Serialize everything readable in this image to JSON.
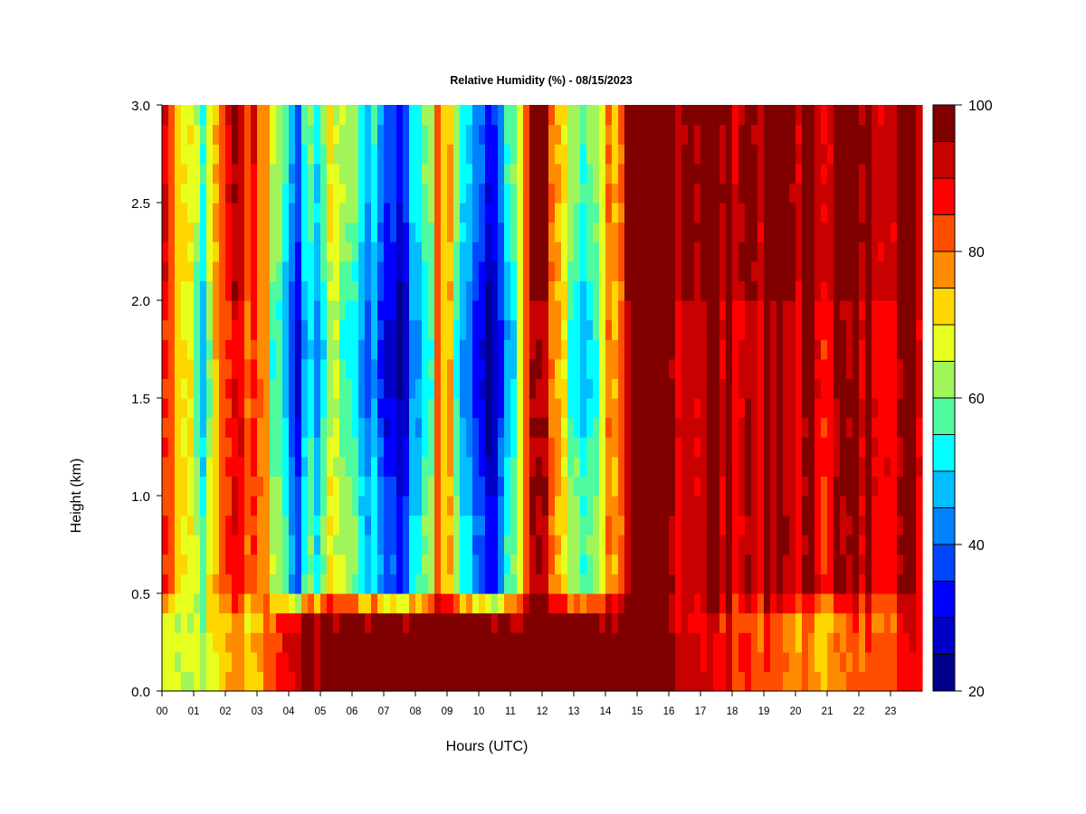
{
  "chart_data": {
    "type": "heatmap",
    "title": "Relative Humidity (%) - 08/15/2023",
    "xlabel": "Hours (UTC)",
    "ylabel": "Height (km)",
    "xlim": [
      0,
      24
    ],
    "ylim": [
      0.0,
      3.0
    ],
    "x_ticks": [
      "00",
      "01",
      "02",
      "03",
      "04",
      "05",
      "06",
      "07",
      "08",
      "09",
      "10",
      "11",
      "12",
      "13",
      "14",
      "15",
      "16",
      "17",
      "18",
      "19",
      "20",
      "21",
      "22",
      "23"
    ],
    "y_ticks": [
      "0.0",
      "0.5",
      "1.0",
      "1.5",
      "2.0",
      "2.5",
      "3.0"
    ],
    "colorbar": {
      "min": 20,
      "max": 100,
      "step": 5,
      "tick_labels": [
        "20",
        "40",
        "60",
        "80",
        "100"
      ],
      "levels_colors": [
        "#00008b",
        "#0000c8",
        "#0000ff",
        "#0046ff",
        "#0082ff",
        "#00beff",
        "#00ffff",
        "#50fa9e",
        "#a0f55a",
        "#e6ff1e",
        "#ffd700",
        "#ff8c00",
        "#ff4e00",
        "#ff0000",
        "#c80000",
        "#800000"
      ]
    },
    "field_description_points": [
      {
        "hour": 0.0,
        "rh_low": 70,
        "rh_high": 88
      },
      {
        "hour": 1.4,
        "rh_low": 65,
        "rh_high": 60
      },
      {
        "hour": 2.0,
        "rh_low": 75,
        "rh_high": 88
      },
      {
        "hour": 3.0,
        "rh_low": 75,
        "rh_high": 85
      },
      {
        "hour": 4.3,
        "rh_low": 95,
        "rh_high": 45
      },
      {
        "hour": 5.5,
        "rh_low": 100,
        "rh_high": 70
      },
      {
        "hour": 7.5,
        "rh_low": 100,
        "rh_high": 35
      },
      {
        "hour": 8.8,
        "rh_low": 100,
        "rh_high": 80
      },
      {
        "hour": 10.3,
        "rh_low": 100,
        "rh_high": 30
      },
      {
        "hour": 11.8,
        "rh_low": 100,
        "rh_high": 97
      },
      {
        "hour": 13.2,
        "rh_low": 100,
        "rh_high": 55
      },
      {
        "hour": 15.0,
        "rh_low": 100,
        "rh_high": 96
      },
      {
        "hour": 20.7,
        "rh_low": 75,
        "rh_high": 92
      },
      {
        "hour": 24.0,
        "rh_low": 90,
        "rh_high": 95
      }
    ]
  }
}
